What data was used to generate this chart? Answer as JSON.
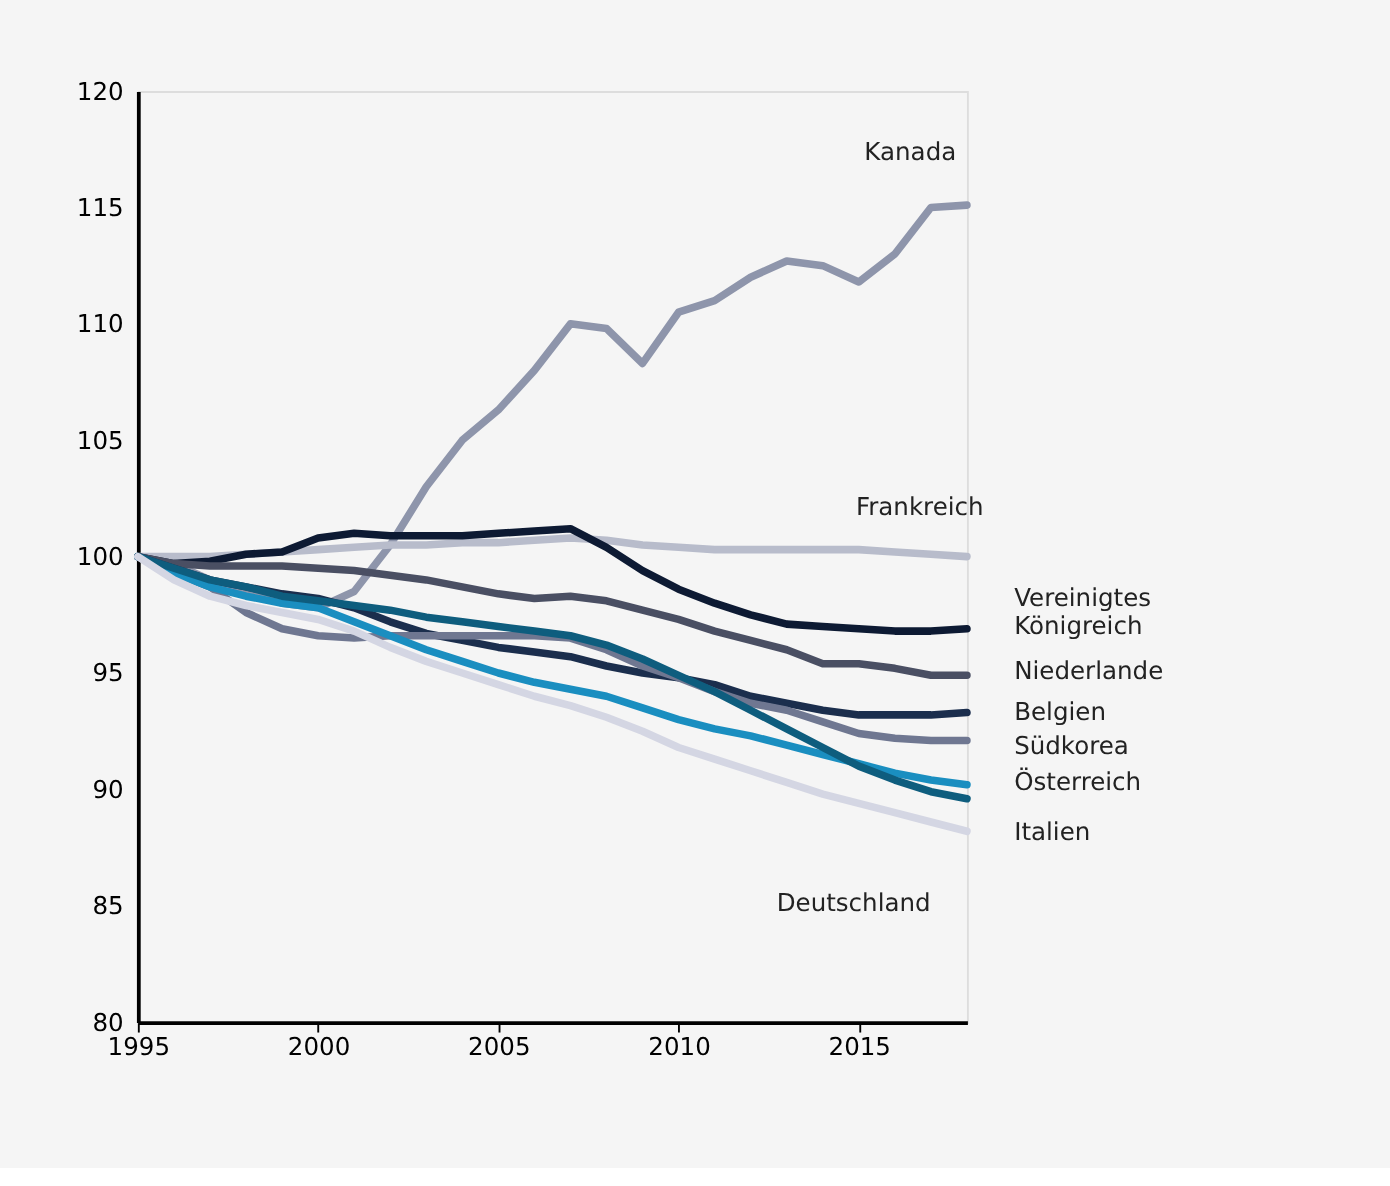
{
  "chart_data": {
    "type": "line",
    "x": [
      1995,
      1996,
      1997,
      1998,
      1999,
      2000,
      2001,
      2002,
      2003,
      2004,
      2005,
      2006,
      2007,
      2008,
      2009,
      2010,
      2011,
      2012,
      2013,
      2014,
      2015,
      2016,
      2017,
      2018
    ],
    "xlim": [
      1995,
      2018
    ],
    "xticks": [
      1995,
      2000,
      2005,
      2010,
      2015
    ],
    "ylim": [
      80,
      120
    ],
    "yticks": [
      80,
      85,
      90,
      95,
      100,
      105,
      110,
      115,
      120
    ],
    "grid": false,
    "legend": false,
    "marker": "none",
    "line_style": "solid",
    "series": [
      {
        "name": "Kanada",
        "color": "#8e95ab",
        "values": [
          100,
          99.7,
          99,
          98.5,
          98,
          97.8,
          98.5,
          100.5,
          103,
          105,
          106.3,
          108,
          110,
          109.8,
          108.3,
          110.5,
          111,
          112,
          112.7,
          112.5,
          111.8,
          113,
          115,
          115.1
        ]
      },
      {
        "name": "Frankreich",
        "color": "#b8bccb",
        "values": [
          100,
          100,
          100,
          100.1,
          100.2,
          100.3,
          100.4,
          100.5,
          100.5,
          100.6,
          100.6,
          100.7,
          100.8,
          100.7,
          100.5,
          100.4,
          100.3,
          100.3,
          100.3,
          100.3,
          100.3,
          100.2,
          100.1,
          100.0
        ]
      },
      {
        "name": "Vereinigtes Königreich",
        "color": "#0d1a33",
        "values": [
          100,
          99.7,
          99.8,
          100.1,
          100.2,
          100.8,
          101,
          100.9,
          100.9,
          100.9,
          101,
          101.1,
          101.2,
          100.4,
          99.4,
          98.6,
          98,
          97.5,
          97.1,
          97.0,
          96.9,
          96.8,
          96.8,
          96.9
        ]
      },
      {
        "name": "Niederlande",
        "color": "#4a4f63",
        "values": [
          100,
          99.7,
          99.6,
          99.6,
          99.6,
          99.5,
          99.4,
          99.2,
          99.0,
          98.7,
          98.4,
          98.2,
          98.3,
          98.1,
          97.7,
          97.3,
          96.8,
          96.4,
          96.0,
          95.4,
          95.4,
          95.2,
          94.9,
          94.9
        ]
      },
      {
        "name": "Belgien",
        "color": "#1b2e4d",
        "values": [
          100,
          99.5,
          99.0,
          98.7,
          98.4,
          98.2,
          97.8,
          97.2,
          96.7,
          96.4,
          96.1,
          95.9,
          95.7,
          95.3,
          95.0,
          94.8,
          94.5,
          94.0,
          93.7,
          93.4,
          93.2,
          93.2,
          93.2,
          93.3
        ]
      },
      {
        "name": "Südkorea",
        "color": "#6f7791",
        "values": [
          100,
          99.3,
          98.7,
          97.6,
          96.9,
          96.6,
          96.5,
          96.6,
          96.6,
          96.6,
          96.6,
          96.6,
          96.5,
          96.0,
          95.3,
          94.8,
          94.2,
          93.7,
          93.4,
          92.9,
          92.4,
          92.2,
          92.1,
          92.1
        ]
      },
      {
        "name": "Österreich",
        "color": "#1a8ec0",
        "values": [
          100,
          99.3,
          98.7,
          98.3,
          98.0,
          97.8,
          97.2,
          96.6,
          96.0,
          95.5,
          95.0,
          94.6,
          94.3,
          94.0,
          93.5,
          93.0,
          92.6,
          92.3,
          91.9,
          91.5,
          91.1,
          90.7,
          90.4,
          90.2
        ]
      },
      {
        "name": "Italien",
        "color": "#0e5d7e",
        "values": [
          100,
          99.5,
          99.0,
          98.7,
          98.3,
          98.1,
          97.9,
          97.7,
          97.4,
          97.2,
          97.0,
          96.8,
          96.6,
          96.2,
          95.6,
          94.9,
          94.2,
          93.4,
          92.6,
          91.8,
          91.0,
          90.4,
          89.9,
          89.6
        ]
      },
      {
        "name": "Deutschland",
        "color": "#d4d6e3",
        "values": [
          100,
          99.0,
          98.3,
          97.9,
          97.6,
          97.3,
          96.8,
          96.1,
          95.5,
          95.0,
          94.5,
          94.0,
          93.6,
          93.1,
          92.5,
          91.8,
          91.3,
          90.8,
          90.3,
          89.8,
          89.4,
          89.0,
          88.6,
          88.2
        ]
      }
    ]
  }
}
